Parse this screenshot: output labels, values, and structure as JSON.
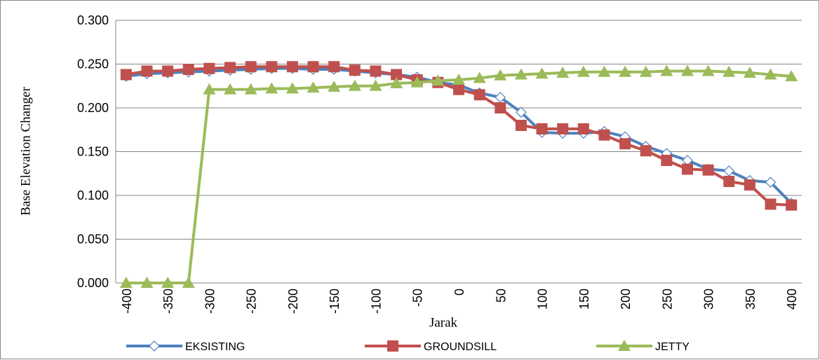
{
  "chart_data": {
    "type": "line",
    "ylabel": "Base Elevation Changer",
    "xlabel": "Jarak",
    "categories": [
      -400,
      null,
      -350,
      null,
      -300,
      null,
      -250,
      null,
      -200,
      null,
      -150,
      null,
      -100,
      null,
      -50,
      null,
      0,
      null,
      50,
      null,
      100,
      null,
      150,
      null,
      200,
      null,
      250,
      null,
      300,
      null,
      350,
      null,
      400
    ],
    "series": [
      {
        "name": "EKSISTING",
        "color": "#4f81bd",
        "marker": "diamond",
        "values": [
          0.236,
          0.239,
          0.24,
          0.241,
          0.242,
          0.243,
          0.244,
          0.245,
          0.245,
          0.244,
          0.244,
          0.242,
          0.24,
          0.238,
          0.235,
          0.229,
          0.226,
          0.217,
          0.212,
          0.195,
          0.172,
          0.171,
          0.171,
          0.173,
          0.167,
          0.156,
          0.148,
          0.14,
          0.13,
          0.128,
          0.117,
          0.115,
          0.091
        ]
      },
      {
        "name": "GROUNDSILL",
        "color": "#c0504d",
        "marker": "square",
        "values": [
          0.238,
          0.242,
          0.242,
          0.244,
          0.245,
          0.246,
          0.247,
          0.247,
          0.247,
          0.247,
          0.247,
          0.243,
          0.242,
          0.238,
          0.232,
          0.229,
          0.221,
          0.215,
          0.2,
          0.18,
          0.176,
          0.176,
          0.176,
          0.169,
          0.159,
          0.151,
          0.14,
          0.13,
          0.129,
          0.116,
          0.112,
          0.09,
          0.089
        ]
      },
      {
        "name": "JETTY",
        "color": "#9bbb59",
        "marker": "triangle",
        "values": [
          0,
          0,
          0,
          0,
          0.221,
          0.221,
          0.221,
          0.222,
          0.222,
          0.223,
          0.224,
          0.225,
          0.225,
          0.228,
          0.229,
          0.231,
          0.232,
          0.234,
          0.237,
          0.238,
          0.239,
          0.24,
          0.241,
          0.241,
          0.241,
          0.241,
          0.242,
          0.242,
          0.242,
          0.241,
          0.24,
          0.238,
          0.236
        ]
      }
    ],
    "ylim": [
      0,
      0.3
    ],
    "yticks": [
      {
        "value": 0,
        "label": "0.000"
      },
      {
        "value": 0.05,
        "label": "0.050"
      },
      {
        "value": 0.1,
        "label": "0.100"
      },
      {
        "value": 0.15,
        "label": "0.150"
      },
      {
        "value": 0.2,
        "label": "0.200"
      },
      {
        "value": 0.25,
        "label": "0.250"
      },
      {
        "value": 0.3,
        "label": "0.300"
      }
    ],
    "grid": true,
    "legend": "bottom"
  }
}
